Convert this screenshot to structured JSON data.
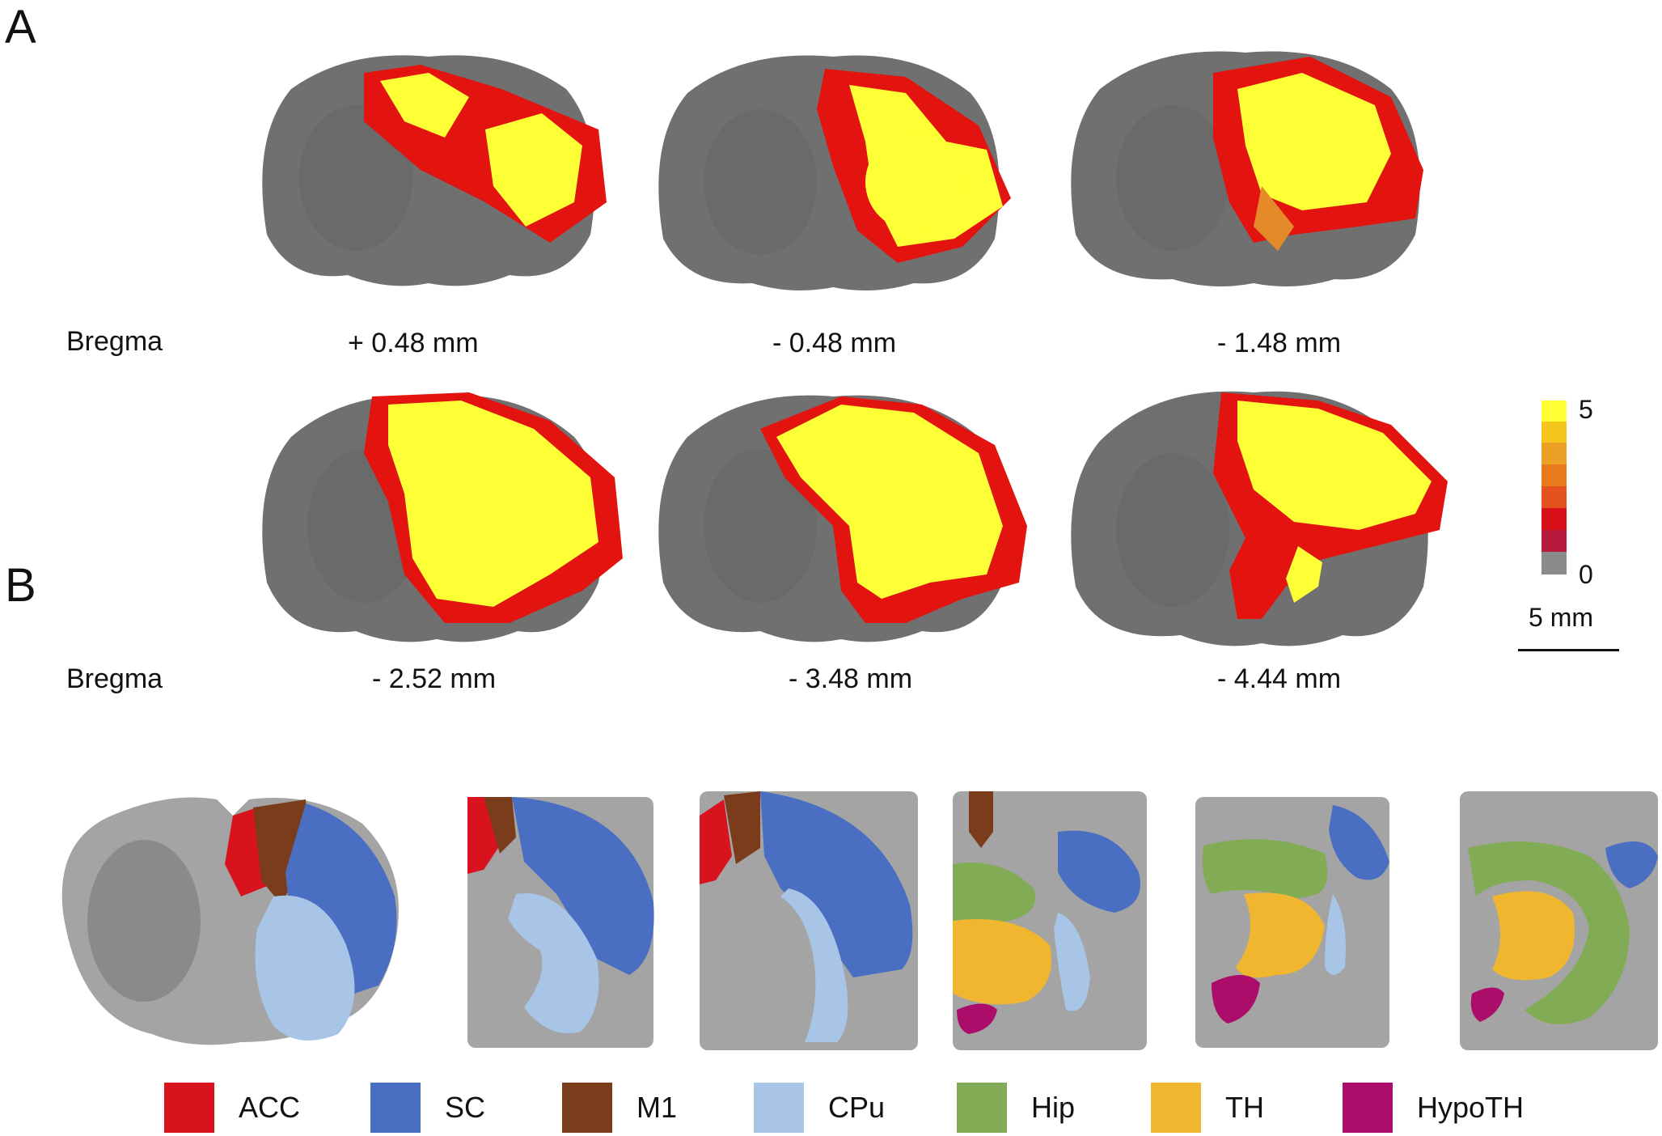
{
  "panel_a": {
    "letter": "A",
    "bregma_label": "Bregma",
    "row1_levels": [
      "+ 0.48 mm",
      "- 0.48 mm",
      "- 1.48 mm"
    ],
    "row2_levels": [
      "- 2.52 mm",
      "- 3.48 mm",
      "- 4.44 mm"
    ],
    "colorbar": {
      "max_label": "5",
      "min_label": "0",
      "colors": [
        "#ffff33",
        "#f6c61e",
        "#eda026",
        "#e87a1e",
        "#e3521c",
        "#d8101a",
        "#b61a3c",
        "#8a8a8a"
      ]
    },
    "scalebar_label": "5 mm"
  },
  "panel_b": {
    "letter": "B",
    "legend": [
      {
        "label": "ACC",
        "color": "#d9131d"
      },
      {
        "label": "SC",
        "color": "#4a6fc2"
      },
      {
        "label": "M1",
        "color": "#7a3c1a"
      },
      {
        "label": "CPu",
        "color": "#a8c4e6"
      },
      {
        "label": "Hip",
        "color": "#82ab56"
      },
      {
        "label": "TH",
        "color": "#f0b630"
      },
      {
        "label": "HypoTH",
        "color": "#ad0d6a"
      }
    ]
  }
}
